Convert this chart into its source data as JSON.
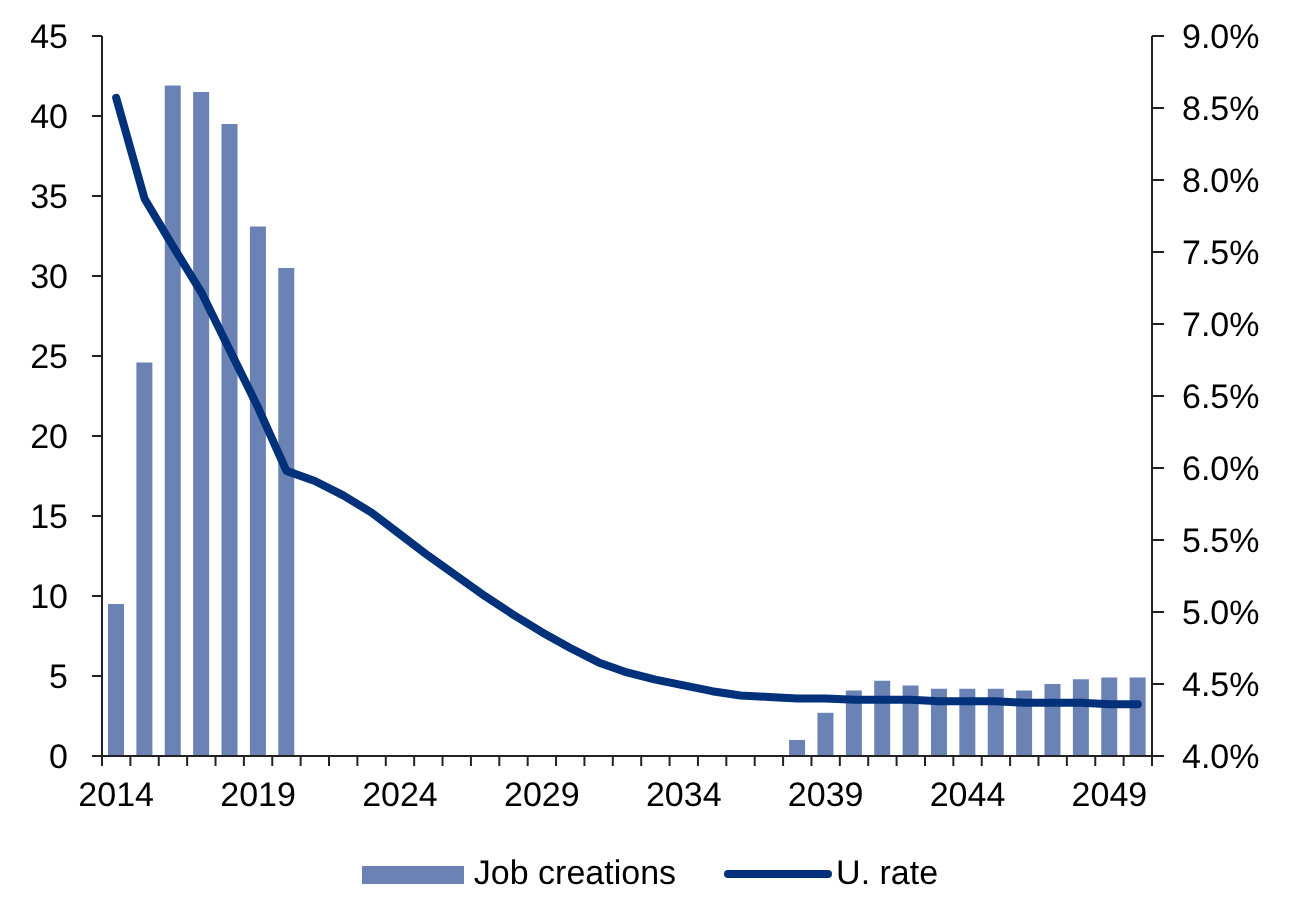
{
  "chart_data": {
    "type": "bar",
    "categories": [
      "2014",
      null,
      null,
      null,
      null,
      "2019",
      null,
      null,
      null,
      null,
      "2024",
      null,
      null,
      null,
      null,
      "2029",
      null,
      null,
      null,
      null,
      "2034",
      null,
      null,
      null,
      null,
      "2039",
      null,
      null,
      null,
      null,
      "2044",
      null,
      null,
      null,
      null,
      "2049",
      null
    ],
    "series": [
      {
        "name": "Job creations",
        "color": "#6b82b5",
        "values": [
          9.5,
          24.6,
          41.9,
          41.5,
          39.5,
          33.1,
          30.5,
          null,
          null,
          null,
          null,
          null,
          null,
          null,
          null,
          null,
          null,
          null,
          null,
          null,
          null,
          null,
          null,
          null,
          1.0,
          2.7,
          4.1,
          4.7,
          4.4,
          4.2,
          4.2,
          4.2,
          4.1,
          4.5,
          4.8,
          4.9,
          4.9
        ]
      },
      {
        "name": "U. rate",
        "type": "line",
        "axis": "y2",
        "color": "#00317a",
        "values": [
          8.57,
          7.87,
          7.54,
          7.22,
          6.82,
          6.42,
          5.98,
          5.91,
          5.81,
          5.69,
          5.54,
          5.39,
          5.25,
          5.11,
          4.98,
          4.86,
          4.75,
          4.65,
          4.58,
          4.53,
          4.49,
          4.45,
          4.42,
          4.41,
          4.4,
          4.4,
          4.39,
          4.39,
          4.39,
          4.38,
          4.38,
          4.38,
          4.37,
          4.37,
          4.37,
          4.36,
          4.36
        ]
      }
    ],
    "ylim": [
      0,
      45
    ],
    "yticks": [
      0,
      5,
      10,
      15,
      20,
      25,
      30,
      35,
      40,
      45
    ],
    "y2lim": [
      4,
      9
    ],
    "y2ticks": [
      {
        "value": 4,
        "label": "4.0%"
      },
      {
        "value": 4.5,
        "label": "4.5%"
      },
      {
        "value": 5,
        "label": "5.0%"
      },
      {
        "value": 5.5,
        "label": "5.5%"
      },
      {
        "value": 6,
        "label": "6.0%"
      },
      {
        "value": 6.5,
        "label": "6.5%"
      },
      {
        "value": 7,
        "label": "7.0%"
      },
      {
        "value": 7.5,
        "label": "7.5%"
      },
      {
        "value": 8,
        "label": "8.0%"
      },
      {
        "value": 8.5,
        "label": "8.5%"
      },
      {
        "value": 9,
        "label": "9.0%"
      }
    ],
    "legend": "bottom",
    "marker": "none",
    "line_style": "solid"
  }
}
